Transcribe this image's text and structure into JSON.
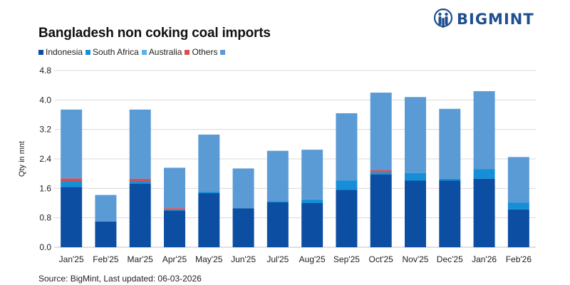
{
  "header": {
    "brand": "BIGMINT"
  },
  "source": "Source: BigMint, Last updated: 06-03-2026",
  "colors": {
    "Indonesia": "#0b4ea2",
    "South Africa": "#1590d8",
    "Australia": "#5ab3ea",
    "Others": "#e24b4b",
    "Extra": "#5b9bd5",
    "logo": "#1f4f8f"
  },
  "chart_data": {
    "type": "bar",
    "stacked": true,
    "title": "Bangladesh non coking coal imports",
    "ylabel": "Qty in mnt",
    "xlabel": "",
    "ylim": [
      0,
      4.8
    ],
    "yticks": [
      "0.0",
      "0.8",
      "1.6",
      "2.4",
      "3.2",
      "4.0",
      "4.8"
    ],
    "grid": true,
    "legend_position": "top-left",
    "categories": [
      "Jan'25",
      "Feb'25",
      "Mar'25",
      "Apr'25",
      "May'25",
      "Jun'25",
      "Jul'25",
      "Aug'25",
      "Sep'25",
      "Oct'25",
      "Nov'25",
      "Dec'25",
      "Jan'26",
      "Feb'26"
    ],
    "series": [
      {
        "name": "Indonesia",
        "color": "#0b4ea2",
        "values": [
          1.64,
          0.7,
          1.73,
          1.0,
          1.47,
          1.06,
          1.22,
          1.2,
          1.56,
          1.98,
          1.81,
          1.81,
          1.86,
          1.03
        ]
      },
      {
        "name": "South Africa",
        "color": "#1590d8",
        "values": [
          0.16,
          0.0,
          0.07,
          0.02,
          0.03,
          0.0,
          0.03,
          0.1,
          0.25,
          0.06,
          0.21,
          0.05,
          0.26,
          0.18
        ]
      },
      {
        "name": "Australia",
        "color": "#5ab3ea",
        "values": [
          0.0,
          0.0,
          0.0,
          0.0,
          0.0,
          0.0,
          0.0,
          0.0,
          0.0,
          0.0,
          0.0,
          0.0,
          0.0,
          0.0
        ]
      },
      {
        "name": "Others",
        "color": "#e24b4b",
        "values": [
          0.07,
          0.0,
          0.06,
          0.04,
          0.0,
          0.0,
          0.0,
          0.0,
          0.0,
          0.05,
          0.0,
          0.0,
          0.0,
          0.0
        ]
      },
      {
        "name": "",
        "color": "#5b9bd5",
        "values": [
          1.87,
          0.72,
          1.88,
          1.1,
          1.56,
          1.08,
          1.37,
          1.35,
          1.83,
          2.11,
          2.06,
          1.9,
          2.12,
          1.24
        ]
      }
    ]
  }
}
